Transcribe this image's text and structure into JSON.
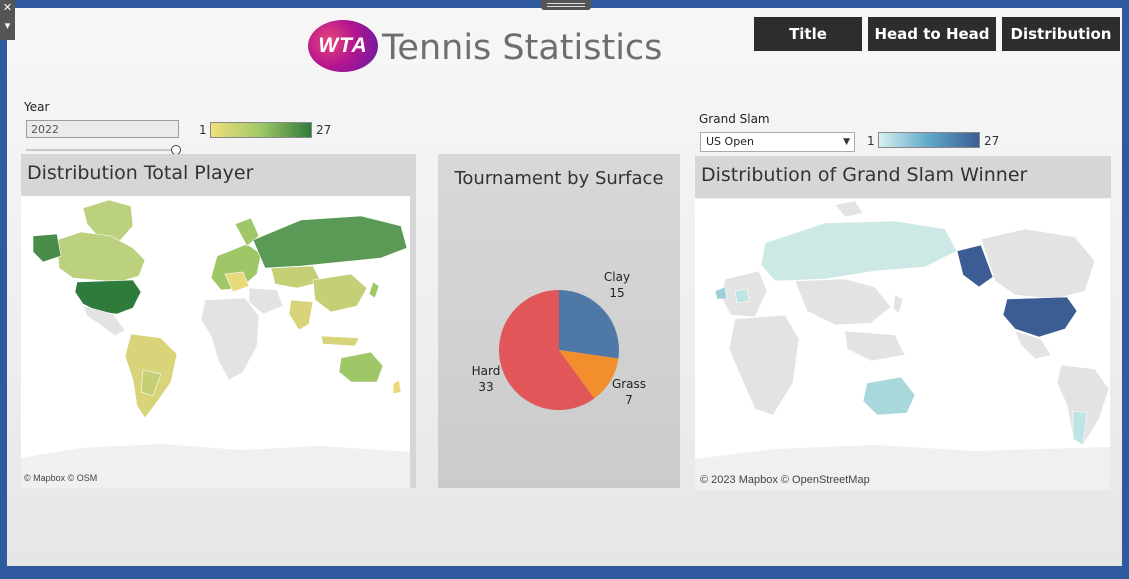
{
  "header": {
    "logo_text": "WTA",
    "title": "Tennis Statistics",
    "nav": [
      {
        "label": "Title"
      },
      {
        "label": "Head to Head"
      },
      {
        "label": "Distribution"
      }
    ]
  },
  "filters": {
    "year": {
      "label": "Year",
      "value": "2022"
    },
    "year_legend": {
      "min": "1",
      "max": "27",
      "color_low": "#efe07a",
      "color_high": "#2f7b3b"
    },
    "grand_slam": {
      "label": "Grand Slam",
      "value": "US Open"
    },
    "gs_legend": {
      "min": "1",
      "max": "27",
      "color_low": "#d6f0ef",
      "color_high": "#3b5d94"
    }
  },
  "panels": {
    "left": {
      "title": "Distribution Total Player",
      "attribution": "© Mapbox © OSM"
    },
    "middle": {
      "title": "Tournament by Surface"
    },
    "right": {
      "title": "Distribution of Grand Slam Winner",
      "attribution": "© 2023 Mapbox © OpenStreetMap"
    }
  },
  "chart_data": {
    "type": "pie",
    "title": "Tournament by Surface",
    "slices": [
      {
        "label": "Clay",
        "value": 15,
        "color": "#4e79a7"
      },
      {
        "label": "Grass",
        "value": 7,
        "color": "#f28e2b"
      },
      {
        "label": "Hard",
        "value": 33,
        "color": "#e15759"
      }
    ]
  },
  "colors": {
    "nav_bg": "#2d2d2d",
    "frame": "#2f5aa0",
    "land_base": "#e3e3e3"
  }
}
